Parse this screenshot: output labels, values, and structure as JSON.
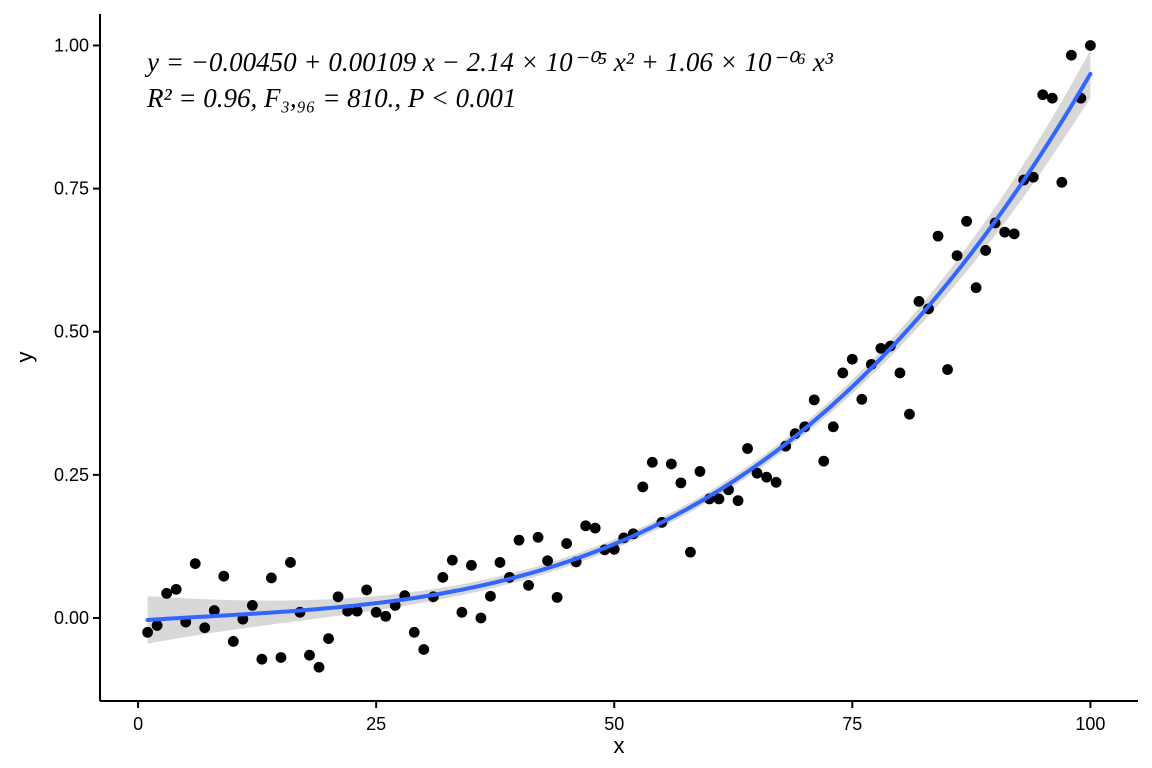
{
  "chart_data": {
    "type": "scatter",
    "xlabel": "x",
    "ylabel": "y",
    "xlim": [
      -4,
      105
    ],
    "ylim": [
      -0.145,
      1.055
    ],
    "x_ticks": [
      0,
      25,
      50,
      75,
      100
    ],
    "x_tick_labels": [
      "0",
      "25",
      "50",
      "75",
      "100"
    ],
    "y_ticks": [
      0,
      0.25,
      0.5,
      0.75,
      1.0
    ],
    "y_tick_labels": [
      "0.00",
      "0.25",
      "0.50",
      "0.75",
      "1.00"
    ],
    "grid": false,
    "annotations": [
      "y = −0.00450 + 0.00109 x − 2.14 × 10⁻⁰⁵ x² + 1.06 × 10⁻⁰⁶ x³",
      "R² = 0.96, F₃,₉₆ = 810., P < 0.001"
    ],
    "fit": {
      "model": "cubic polynomial",
      "coefficients": [
        -0.0045,
        0.00109,
        -2.14e-05,
        1.06e-06
      ],
      "x_range": [
        1,
        100
      ],
      "color": "#3366FF",
      "band_color": "#D4D4D4"
    },
    "point_color": "#000000",
    "points": [
      [
        1,
        -0.025
      ],
      [
        2,
        -0.013
      ],
      [
        3,
        0.043
      ],
      [
        4,
        0.05
      ],
      [
        5,
        -0.007
      ],
      [
        6,
        0.095
      ],
      [
        7,
        -0.017
      ],
      [
        8,
        0.013
      ],
      [
        9,
        0.073
      ],
      [
        10,
        -0.041
      ],
      [
        11,
        -0.002
      ],
      [
        12,
        0.022
      ],
      [
        13,
        -0.072
      ],
      [
        14,
        0.07
      ],
      [
        15,
        -0.069
      ],
      [
        16,
        0.097
      ],
      [
        17,
        0.01
      ],
      [
        18,
        -0.065
      ],
      [
        19,
        -0.086
      ],
      [
        20,
        -0.036
      ],
      [
        21,
        0.037
      ],
      [
        22,
        0.012
      ],
      [
        23,
        0.012
      ],
      [
        24,
        0.049
      ],
      [
        25,
        0.01
      ],
      [
        26,
        0.003
      ],
      [
        27,
        0.022
      ],
      [
        28,
        0.039
      ],
      [
        29,
        -0.025
      ],
      [
        30,
        -0.055
      ],
      [
        31,
        0.037
      ],
      [
        32,
        0.071
      ],
      [
        33,
        0.101
      ],
      [
        34,
        0.01
      ],
      [
        35,
        0.092
      ],
      [
        36,
        0.0
      ],
      [
        37,
        0.038
      ],
      [
        38,
        0.097
      ],
      [
        39,
        0.071
      ],
      [
        40,
        0.136
      ],
      [
        41,
        0.057
      ],
      [
        42,
        0.141
      ],
      [
        43,
        0.1
      ],
      [
        44,
        0.036
      ],
      [
        45,
        0.13
      ],
      [
        46,
        0.098
      ],
      [
        47,
        0.161
      ],
      [
        48,
        0.157
      ],
      [
        49,
        0.119
      ],
      [
        50,
        0.12
      ],
      [
        51,
        0.14
      ],
      [
        52,
        0.147
      ],
      [
        53,
        0.229
      ],
      [
        54,
        0.272
      ],
      [
        55,
        0.167
      ],
      [
        56,
        0.269
      ],
      [
        57,
        0.236
      ],
      [
        58,
        0.115
      ],
      [
        59,
        0.256
      ],
      [
        60,
        0.208
      ],
      [
        61,
        0.208
      ],
      [
        62,
        0.224
      ],
      [
        63,
        0.205
      ],
      [
        64,
        0.296
      ],
      [
        65,
        0.253
      ],
      [
        66,
        0.246
      ],
      [
        67,
        0.237
      ],
      [
        68,
        0.3
      ],
      [
        69,
        0.322
      ],
      [
        70,
        0.334
      ],
      [
        71,
        0.381
      ],
      [
        72,
        0.274
      ],
      [
        73,
        0.334
      ],
      [
        74,
        0.428
      ],
      [
        75,
        0.452
      ],
      [
        76,
        0.382
      ],
      [
        77,
        0.443
      ],
      [
        78,
        0.471
      ],
      [
        79,
        0.475
      ],
      [
        80,
        0.428
      ],
      [
        81,
        0.356
      ],
      [
        82,
        0.553
      ],
      [
        83,
        0.54
      ],
      [
        84,
        0.667
      ],
      [
        85,
        0.434
      ],
      [
        86,
        0.633
      ],
      [
        87,
        0.693
      ],
      [
        88,
        0.577
      ],
      [
        89,
        0.642
      ],
      [
        90,
        0.69
      ],
      [
        91,
        0.674
      ],
      [
        92,
        0.671
      ],
      [
        93,
        0.765
      ],
      [
        94,
        0.77
      ],
      [
        95,
        0.914
      ],
      [
        96,
        0.908
      ],
      [
        97,
        0.761
      ],
      [
        98,
        0.983
      ],
      [
        99,
        0.908
      ],
      [
        100,
        1.0
      ]
    ]
  }
}
